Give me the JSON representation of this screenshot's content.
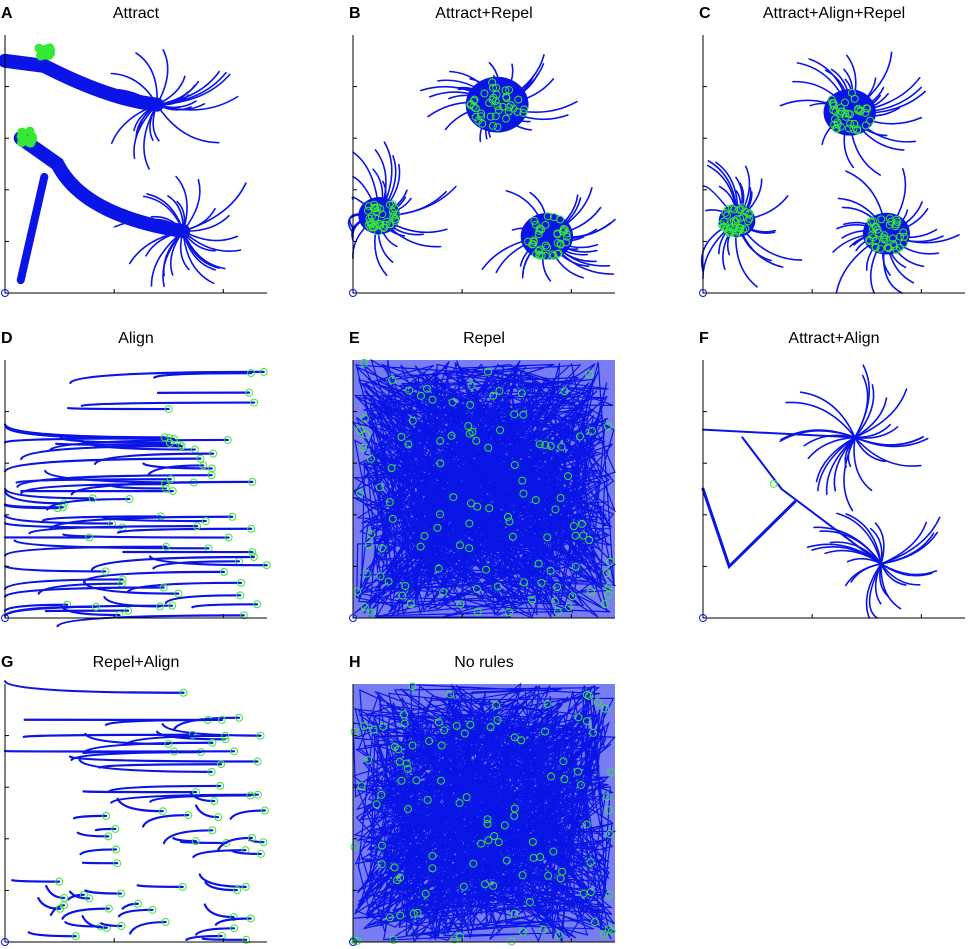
{
  "panels": [
    {
      "letter": "A",
      "title": "Attract"
    },
    {
      "letter": "B",
      "title": "Attract+Repel"
    },
    {
      "letter": "C",
      "title": "Attract+Align+Repel"
    },
    {
      "letter": "D",
      "title": "Align"
    },
    {
      "letter": "E",
      "title": "Repel"
    },
    {
      "letter": "F",
      "title": "Attract+Align"
    },
    {
      "letter": "G",
      "title": "Repel+Align"
    },
    {
      "letter": "H",
      "title": "No rules"
    }
  ]
}
